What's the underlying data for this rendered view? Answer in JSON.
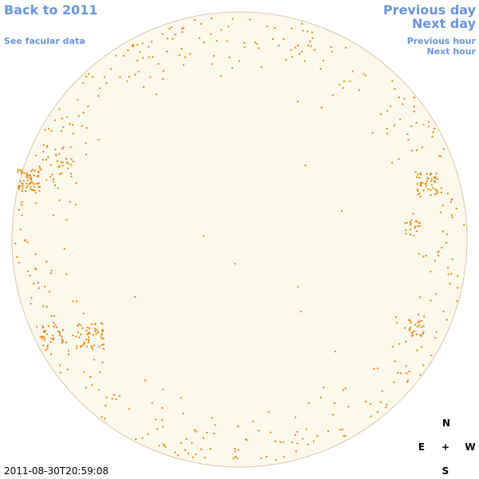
{
  "nav": {
    "back": "Back to 2011",
    "facular": "See facular data",
    "prev_day": "Previous day",
    "next_day": "Next day",
    "prev_hour": "Previous hour",
    "next_hour": "Next hour"
  },
  "compass": {
    "north": "N",
    "east": "E",
    "center": "+",
    "west": "W",
    "south": "S"
  },
  "timestamp": "2011-08-30T20:59:08"
}
